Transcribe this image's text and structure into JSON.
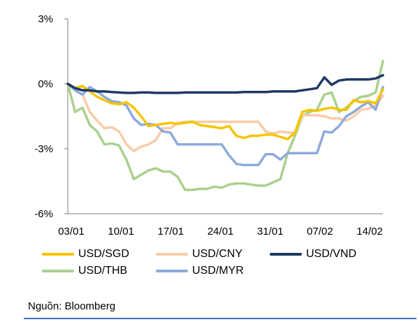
{
  "chart_data": {
    "type": "line",
    "title": "",
    "xlabel": "",
    "ylabel": "",
    "y_ticks": [
      "3%",
      "0%",
      "-3%",
      "-6%"
    ],
    "x_ticks": [
      "03/01",
      "10/01",
      "17/01",
      "24/01",
      "31/01",
      "07/02",
      "14/02"
    ],
    "ylim": [
      -6,
      3
    ],
    "y_unit": "%",
    "grid": false,
    "legend_position": "bottom",
    "x_count": 44,
    "series": [
      {
        "name": "USD/SGD",
        "color": "#f5c400",
        "values": [
          0,
          -0.2,
          -0.1,
          -0.35,
          -0.6,
          -0.75,
          -0.9,
          -0.95,
          -0.85,
          -1.1,
          -1.5,
          -1.95,
          -1.9,
          -1.85,
          -1.8,
          -1.85,
          -1.8,
          -1.75,
          -1.9,
          -1.95,
          -2.0,
          -2.05,
          -1.95,
          -2.4,
          -2.5,
          -2.4,
          -2.4,
          -2.35,
          -2.35,
          -2.45,
          -2.55,
          -2.25,
          -1.3,
          -1.2,
          -1.25,
          -1.15,
          -1.1,
          -1.2,
          -1.2,
          -0.75,
          -0.85,
          -0.8,
          -0.9,
          -0.25
        ]
      },
      {
        "name": "USD/CNY",
        "color": "#f9cca8",
        "values": [
          0,
          -0.3,
          -0.5,
          -1.3,
          -1.7,
          -2.05,
          -2.0,
          -2.2,
          -2.8,
          -3.1,
          -2.9,
          -2.8,
          -2.6,
          -2.05,
          -2.05,
          -1.8,
          -1.75,
          -1.75,
          -1.75,
          -1.75,
          -1.75,
          -1.75,
          -1.75,
          -1.75,
          -1.75,
          -1.75,
          -1.75,
          -2.2,
          -2.3,
          -2.2,
          -2.25,
          -2.25,
          -1.45,
          -1.45,
          -1.45,
          -1.5,
          -1.6,
          -1.6,
          -1.7,
          -1.5,
          -1.2,
          -1.15,
          -1.0,
          -0.55
        ]
      },
      {
        "name": "USD/VND",
        "color": "#1f3864",
        "values": [
          0,
          -0.2,
          -0.3,
          -0.3,
          -0.35,
          -0.35,
          -0.38,
          -0.4,
          -0.42,
          -0.42,
          -0.4,
          -0.4,
          -0.42,
          -0.42,
          -0.42,
          -0.42,
          -0.4,
          -0.4,
          -0.4,
          -0.4,
          -0.4,
          -0.4,
          -0.4,
          -0.4,
          -0.38,
          -0.38,
          -0.38,
          -0.38,
          -0.35,
          -0.35,
          -0.35,
          -0.35,
          -0.3,
          -0.25,
          -0.2,
          0.3,
          -0.05,
          0.15,
          0.2,
          0.2,
          0.2,
          0.2,
          0.25,
          0.4
        ]
      },
      {
        "name": "USD/THB",
        "color": "#a9d18e",
        "values": [
          0,
          -1.3,
          -1.1,
          -1.9,
          -2.2,
          -2.8,
          -2.75,
          -2.85,
          -3.5,
          -4.4,
          -4.2,
          -4.0,
          -3.9,
          -4.05,
          -4.05,
          -4.3,
          -4.9,
          -4.9,
          -4.85,
          -4.85,
          -4.75,
          -4.8,
          -4.65,
          -4.6,
          -4.6,
          -4.65,
          -4.7,
          -4.7,
          -4.55,
          -4.4,
          -3.2,
          -2.4,
          -1.5,
          -1.3,
          -1.2,
          -0.5,
          -0.4,
          -1.3,
          -1.1,
          -0.8,
          -0.6,
          -0.55,
          -0.4,
          1.05
        ]
      },
      {
        "name": "USD/MYR",
        "color": "#8eaadb",
        "values": [
          0,
          -0.3,
          -0.5,
          -0.15,
          -0.35,
          -0.6,
          -0.8,
          -0.85,
          -1.0,
          -1.6,
          -1.9,
          -1.85,
          -1.9,
          -2.2,
          -2.25,
          -2.8,
          -2.8,
          -2.8,
          -2.8,
          -2.8,
          -2.8,
          -2.8,
          -3.3,
          -3.7,
          -3.75,
          -3.75,
          -3.75,
          -3.25,
          -3.25,
          -3.5,
          -3.2,
          -3.2,
          -3.2,
          -3.2,
          -3.2,
          -2.2,
          -2.25,
          -1.95,
          -1.5,
          -1.3,
          -1.05,
          -0.85,
          -1.2,
          -0.15
        ]
      }
    ]
  },
  "source": "Nguồn: Bloomberg"
}
